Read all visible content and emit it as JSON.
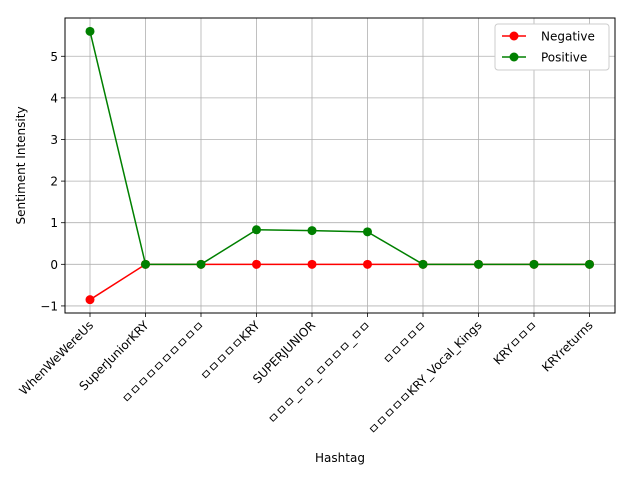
{
  "chart_data": {
    "type": "line",
    "title": "",
    "xlabel": "Hashtag",
    "ylabel": "Sentiment Intensity",
    "categories": [
      "WhenWeWereUs",
      "SuperJuniorKRY",
      "ㅁㅁㅁㅁㅁㅁㅁㅁㅁㅁ",
      "ㅁㅁㅁㅁㅁKRY",
      "SUPERJUNIOR",
      "ㅁㅁㅁ_ㅁㅁ_ㅁㅁㅁㅁ_ㅁㅁ",
      "ㅁㅁㅁㅁㅁ",
      "ㅁㅁㅁㅁㅁKRY_Vocal_Kings",
      "KRYㅁㅁㅁ",
      "KRYreturns"
    ],
    "series": [
      {
        "name": "Negative",
        "color": "#ff0000",
        "values": [
          -0.85,
          0,
          0,
          0,
          0,
          0,
          0,
          0,
          0,
          0
        ]
      },
      {
        "name": "Positive",
        "color": "#008000",
        "values": [
          5.6,
          0,
          0,
          0.83,
          0.81,
          0.78,
          0,
          0,
          0,
          0
        ]
      }
    ],
    "yticks": [
      "−1",
      "0",
      "1",
      "2",
      "3",
      "4",
      "5"
    ],
    "ylim": [
      -1.17,
      5.92
    ],
    "grid": true,
    "legend_position": "top-right"
  }
}
